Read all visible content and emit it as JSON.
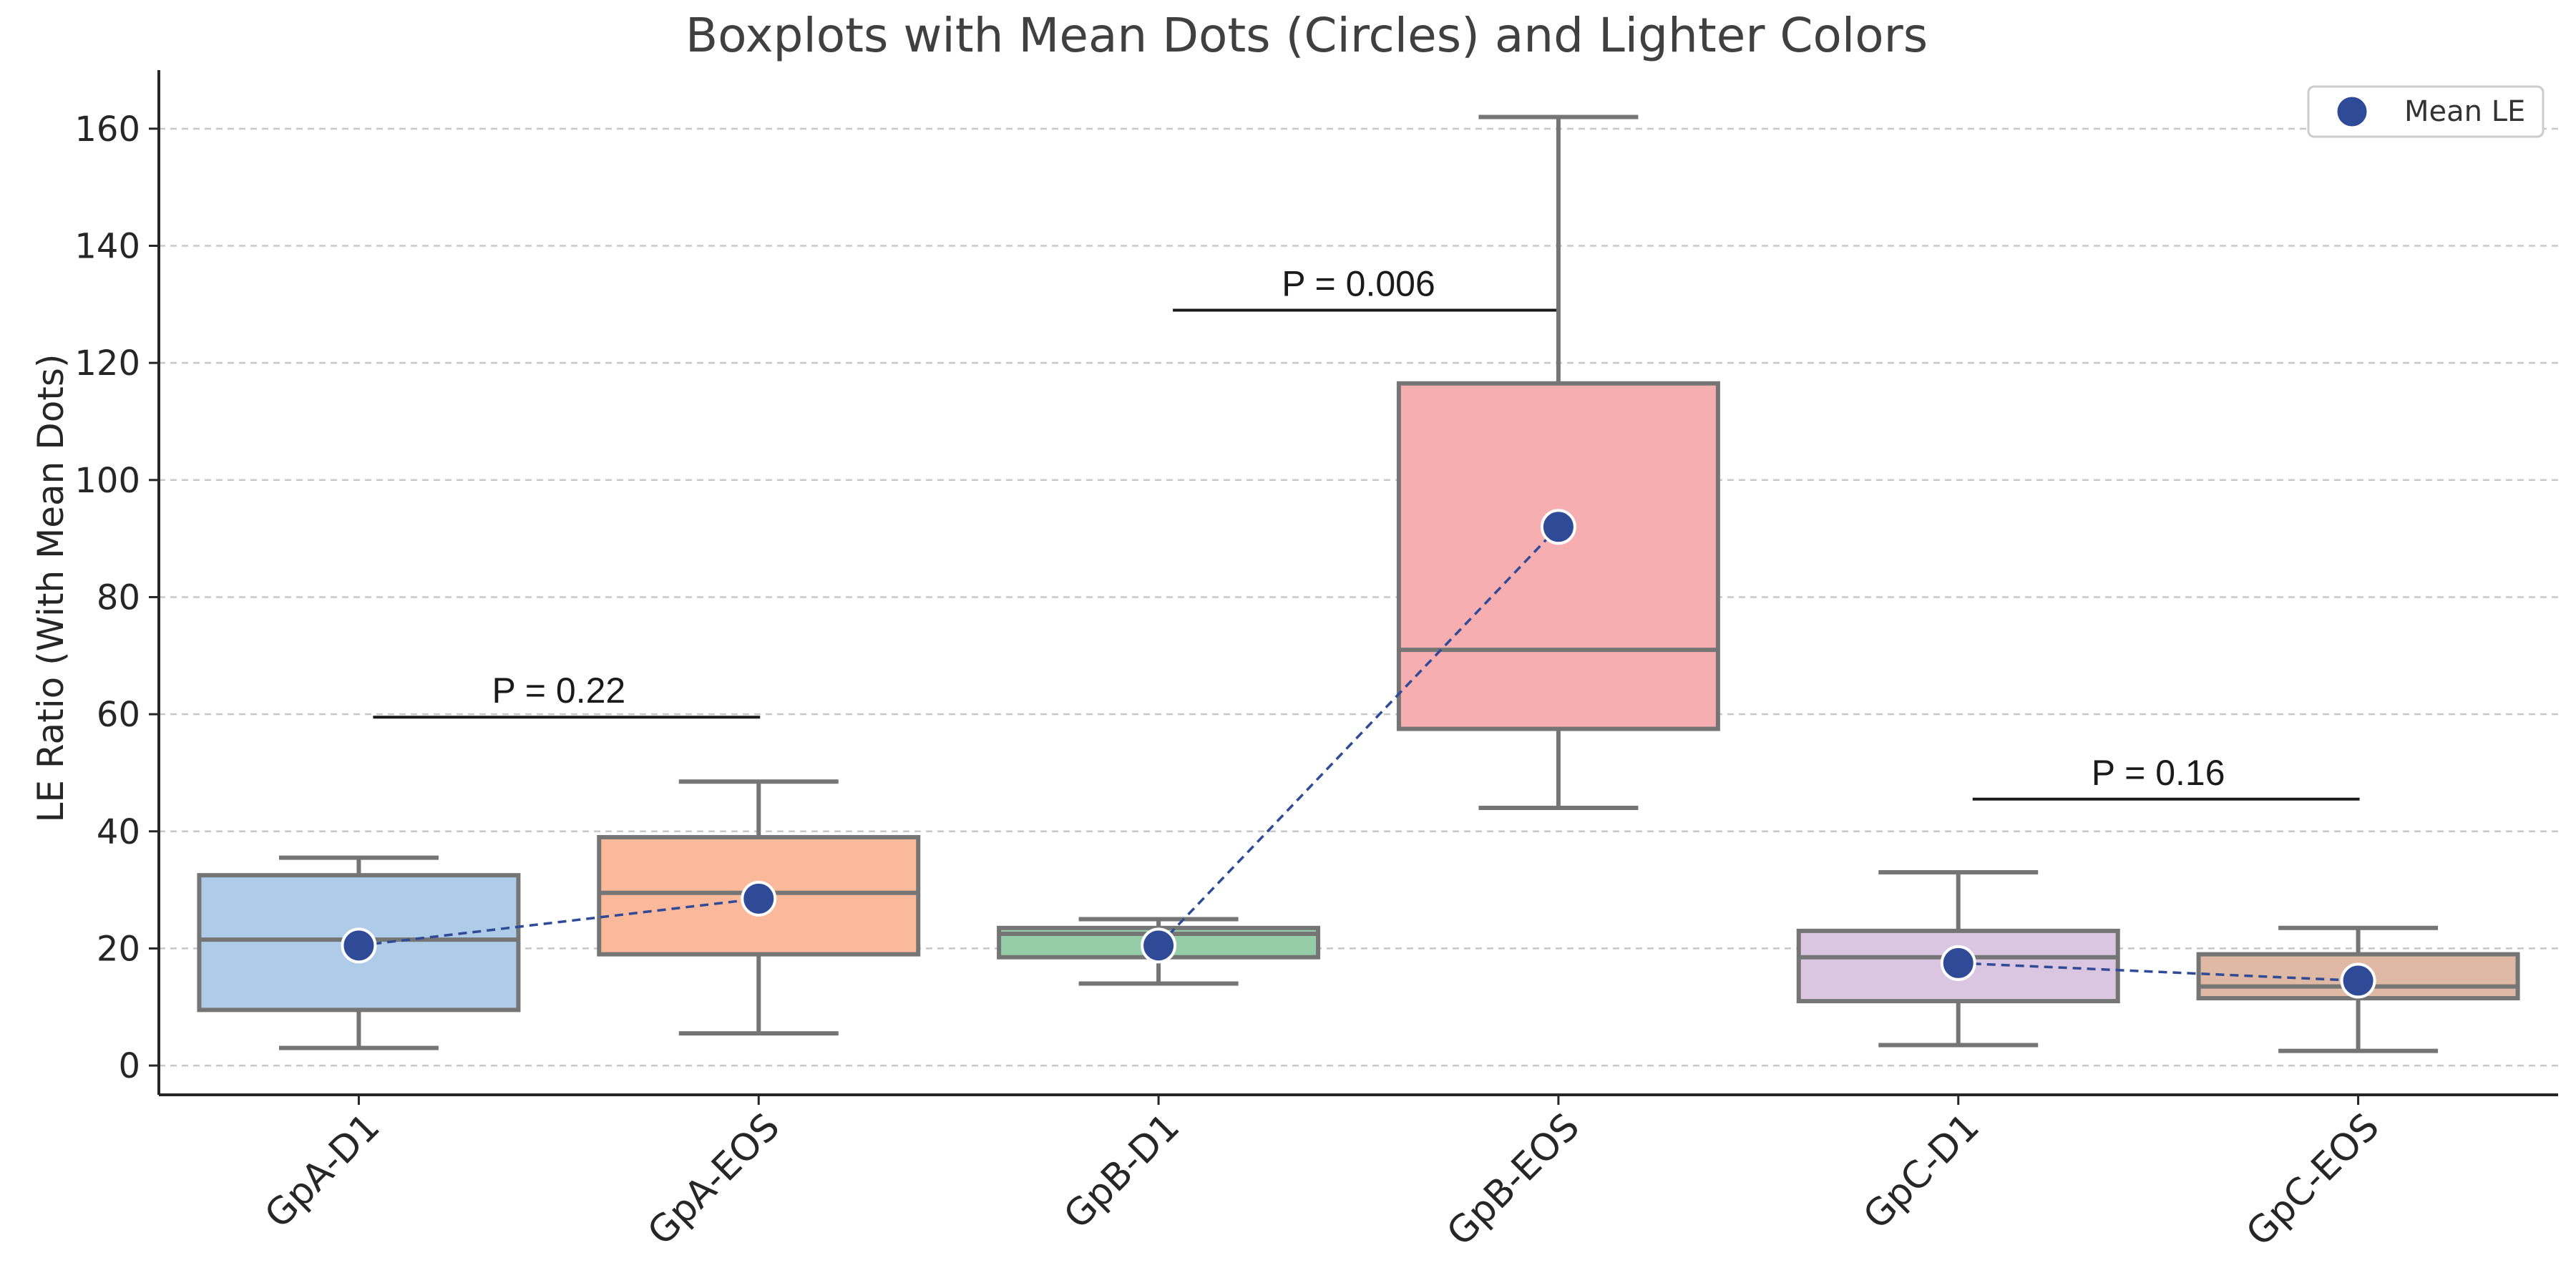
{
  "chart_data": {
    "type": "box",
    "title": "Boxplots with Mean Dots (Circles) and Lighter Colors",
    "xlabel": "",
    "ylabel": "LE Ratio (With Mean Dots)",
    "ylim": [
      -5,
      170
    ],
    "yticks": [
      0,
      20,
      40,
      60,
      80,
      100,
      120,
      140,
      160
    ],
    "grid": "horizontal dashed",
    "legend": {
      "position": "top-right",
      "entries": [
        "Mean LE"
      ]
    },
    "mean_color": "#2f4a96",
    "categories": [
      "GpA-D1",
      "GpA-EOS",
      "GpB-D1",
      "GpB-EOS",
      "GpC-D1",
      "GpC-EOS"
    ],
    "boxes": [
      {
        "label": "GpA-D1",
        "whisker_low": 3.0,
        "q1": 9.5,
        "median": 21.5,
        "q3": 32.5,
        "whisker_high": 35.5,
        "mean": 20.5,
        "color": "#aecbe8"
      },
      {
        "label": "GpA-EOS",
        "whisker_low": 5.5,
        "q1": 19.0,
        "median": 29.5,
        "q3": 39.0,
        "whisker_high": 48.5,
        "mean": 28.5,
        "color": "#fbb99b"
      },
      {
        "label": "GpB-D1",
        "whisker_low": 14.0,
        "q1": 18.5,
        "median": 22.5,
        "q3": 23.5,
        "whisker_high": 25.0,
        "mean": 20.5,
        "color": "#94cda7"
      },
      {
        "label": "GpB-EOS",
        "whisker_low": 44.0,
        "q1": 57.5,
        "median": 71.0,
        "q3": 116.5,
        "whisker_high": 162.0,
        "mean": 92.0,
        "color": "#f7aeb0"
      },
      {
        "label": "GpC-D1",
        "whisker_low": 3.5,
        "q1": 11.0,
        "median": 18.5,
        "q3": 23.0,
        "whisker_high": 33.0,
        "mean": 17.5,
        "color": "#dac6e1"
      },
      {
        "label": "GpC-EOS",
        "whisker_low": 2.5,
        "q1": 11.5,
        "median": 13.5,
        "q3": 19.0,
        "whisker_high": 23.5,
        "mean": 14.5,
        "color": "#dfb9a4"
      }
    ],
    "mean_lines": [
      [
        0,
        1
      ],
      [
        2,
        3
      ],
      [
        4,
        5
      ]
    ],
    "annotations": [
      {
        "text": "P = 0.22",
        "from": 0,
        "to": 1,
        "y": 59.5
      },
      {
        "text": "P = 0.006",
        "from": 2,
        "to": 3,
        "y": 129.0
      },
      {
        "text": "P = 0.16",
        "from": 4,
        "to": 5,
        "y": 45.5
      }
    ]
  }
}
